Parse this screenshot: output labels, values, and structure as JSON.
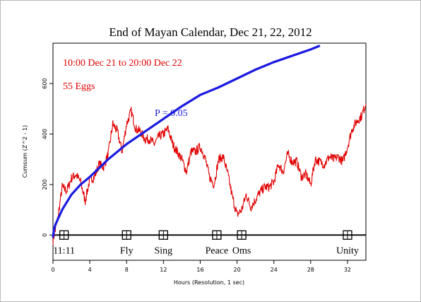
{
  "chart_data": {
    "type": "line",
    "title": "End of Mayan Calendar, Dec 21, 22, 2012",
    "xlabel": "Hours (Resolution, 1 sec)",
    "ylabel": "Cumsum (Z^2 - 1)",
    "xlim": [
      0,
      34
    ],
    "ylim": [
      -100,
      760
    ],
    "xticks": [
      0,
      4,
      8,
      12,
      16,
      20,
      24,
      28,
      32
    ],
    "yticks": [
      0,
      200,
      400,
      600
    ],
    "grid": false,
    "annotations": {
      "period": "10:00 Dec 21 to 20:00 Dec 22",
      "eggs": "55 Eggs",
      "p_label": "P = 0.05"
    },
    "colors": {
      "series": "#e00000",
      "probability": "#1a1ae0",
      "annotation_red": "#e00000",
      "annotation_blue": "#1a1ae0"
    },
    "series": [
      {
        "x": [
          0,
          0.5,
          1,
          1.5,
          2,
          2.5,
          3,
          3.5,
          4,
          4.5,
          5,
          5.5,
          6,
          6.5,
          7,
          7.5,
          8,
          8.5,
          9,
          9.5,
          10,
          10.5,
          11,
          11.5,
          12,
          12.5,
          13,
          13.5,
          14,
          14.5,
          15,
          15.5,
          16,
          16.5,
          17,
          17.5,
          18,
          18.5,
          19,
          19.5,
          20,
          20.5,
          21,
          21.5,
          22,
          22.5,
          23,
          23.5,
          24,
          24.5,
          25,
          25.5,
          26,
          26.5,
          27,
          27.5,
          28,
          28.5,
          29,
          29.5,
          30,
          30.5,
          31,
          31.5,
          32,
          32.5,
          33,
          33.5,
          34
        ],
        "values": [
          -20,
          60,
          190,
          175,
          225,
          240,
          210,
          135,
          220,
          230,
          280,
          270,
          320,
          440,
          410,
          330,
          440,
          490,
          420,
          410,
          380,
          380,
          360,
          390,
          400,
          420,
          360,
          330,
          300,
          250,
          330,
          330,
          350,
          310,
          230,
          200,
          300,
          310,
          240,
          150,
          80,
          100,
          160,
          110,
          140,
          170,
          190,
          190,
          210,
          280,
          250,
          320,
          290,
          290,
          230,
          240,
          200,
          300,
          290,
          280,
          310,
          300,
          310,
          290,
          350,
          420,
          450,
          470,
          520
        ]
      },
      {
        "x": [
          0,
          0.1,
          0.25,
          0.5,
          1,
          2,
          3,
          4,
          6,
          8,
          10,
          12,
          14,
          16,
          18,
          20,
          22,
          24,
          26,
          28,
          29
        ],
        "values": [
          -10,
          20,
          40,
          60,
          100,
          160,
          200,
          230,
          300,
          360,
          410,
          460,
          510,
          555,
          585,
          620,
          655,
          685,
          710,
          735,
          750
        ]
      }
    ],
    "events": [
      {
        "label": "11:11",
        "x": 1.2
      },
      {
        "label": "Fly",
        "x": 8
      },
      {
        "label": "Sing",
        "x": 12
      },
      {
        "label": "Peace",
        "x": 17.8
      },
      {
        "label": "Oms",
        "x": 20.5
      },
      {
        "label": "Unity",
        "x": 32
      }
    ]
  }
}
